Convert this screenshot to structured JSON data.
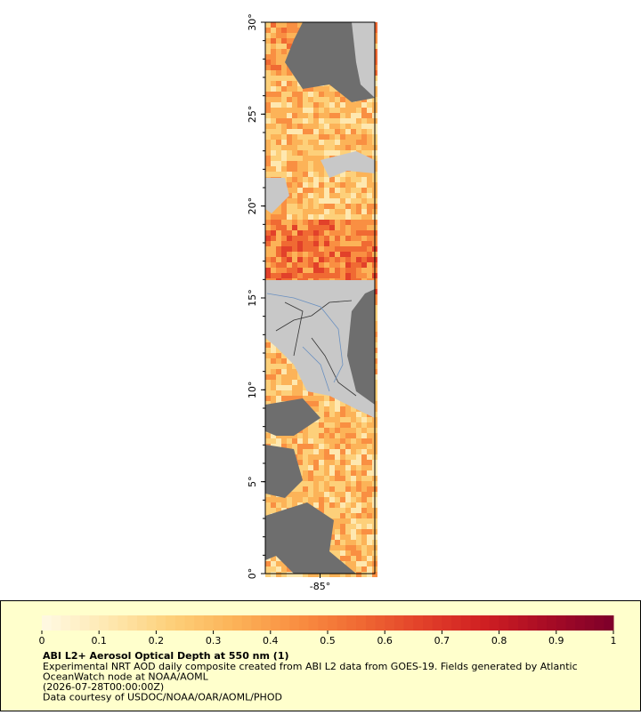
{
  "map": {
    "xlim": [
      -88,
      -82
    ],
    "ylim": [
      0,
      30
    ],
    "xticks": [
      {
        "value": -85,
        "label": "-85°"
      }
    ],
    "yticks": [
      {
        "value": 0,
        "label": "0°"
      },
      {
        "value": 5,
        "label": "5°"
      },
      {
        "value": 10,
        "label": "10°"
      },
      {
        "value": 15,
        "label": "15°"
      },
      {
        "value": 20,
        "label": "20°"
      },
      {
        "value": 25,
        "label": "25°"
      },
      {
        "value": 30,
        "label": "30°"
      }
    ]
  },
  "legend": {
    "range": [
      0,
      1
    ],
    "ticks": [
      0,
      0.1,
      0.2,
      0.3,
      0.4,
      0.5,
      0.6,
      0.7,
      0.8,
      0.9,
      1
    ],
    "colors": [
      "#fff8e0",
      "#fee8b0",
      "#fdd07a",
      "#fcb358",
      "#f98f42",
      "#f06a33",
      "#e2412a",
      "#d01f22",
      "#a80c25",
      "#80002a"
    ],
    "title": "ABI L2+ Aerosol Optical Depth at 550 nm (1)",
    "lines": [
      "Experimental NRT AOD daily composite created from ABI L2 data from GOES-19. Fields generated by Atlantic",
      "OceanWatch node at NOAA/AOML",
      "(2026-07-28T00:00:00Z)",
      "Data courtesy of USDOC/NOAA/OAR/AOML/PHOD"
    ]
  }
}
